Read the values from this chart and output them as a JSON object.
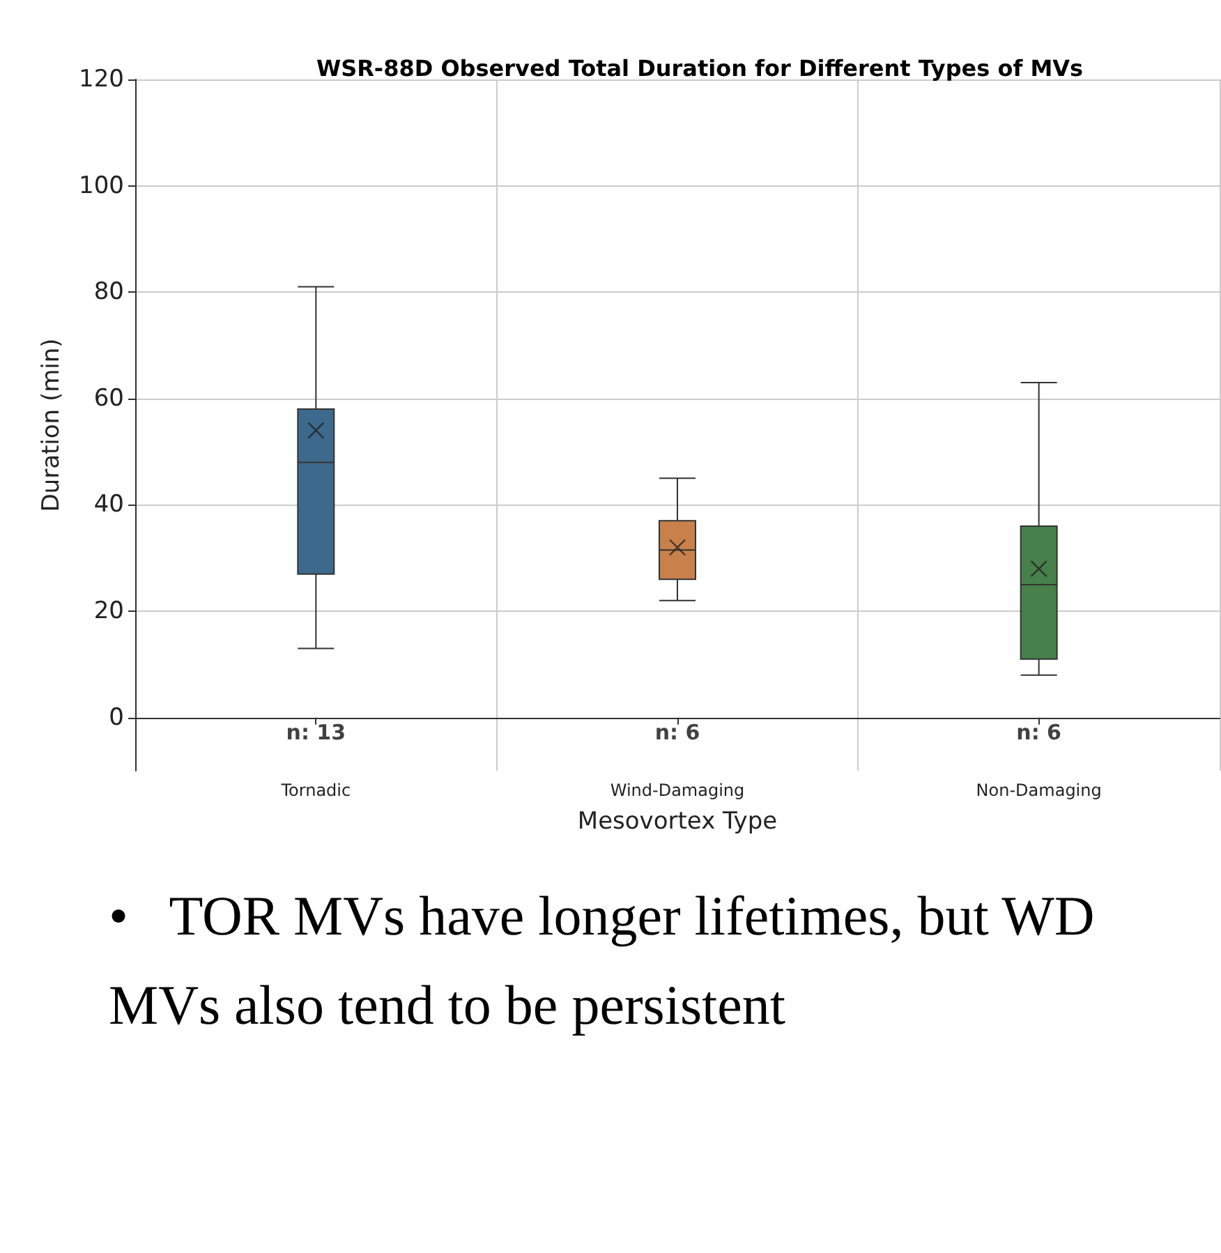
{
  "chart_data": {
    "type": "box",
    "title": "WSR-88D Observed Total Duration for Different Types of MVs",
    "xlabel": "Mesovortex Type",
    "ylabel": "Duration (min)",
    "categories": [
      "Tornadic",
      "Wind-Damaging",
      "Non-Damaging"
    ],
    "colors": [
      "#3d6a8c",
      "#c8814a",
      "#47804a"
    ],
    "boxes": [
      {
        "low": 13,
        "q1": 27,
        "median": 48,
        "q3": 58,
        "high": 81,
        "mean": 54
      },
      {
        "low": 22,
        "q1": 26,
        "median": 31.5,
        "q3": 37,
        "high": 45,
        "mean": 32
      },
      {
        "low": 8,
        "q1": 11,
        "median": 25,
        "q3": 36,
        "high": 63,
        "mean": 28
      }
    ],
    "ylim": [
      -10,
      120
    ],
    "yticks": [
      0,
      20,
      40,
      60,
      80,
      100,
      120
    ],
    "grid": true,
    "annotations": [
      "n: 13",
      "n: 6",
      "n: 6",
      "•   TOR MVs have longer lifetimes, but WD MVs also tend to be persistent"
    ]
  }
}
